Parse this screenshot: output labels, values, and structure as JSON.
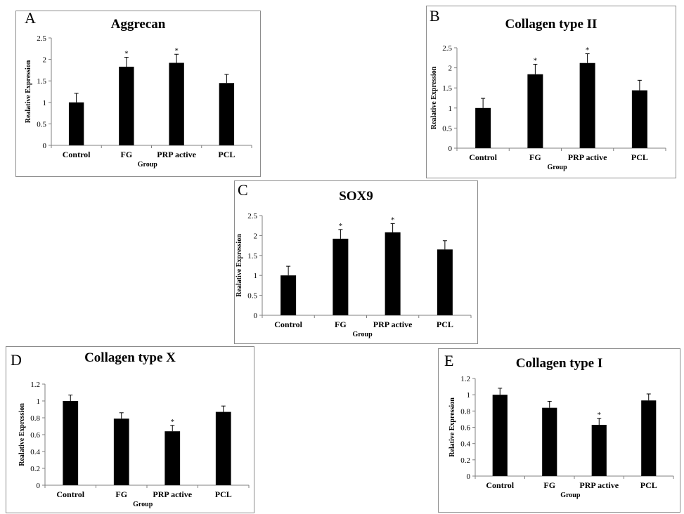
{
  "chart_data": [
    {
      "panel": "A",
      "type": "bar",
      "title": "Aggrecan",
      "xlabel": "Group",
      "ylabel": "Realative Expression",
      "categories": [
        "Control",
        "FG",
        "PRP active",
        "PCL"
      ],
      "values": [
        1.0,
        1.83,
        1.92,
        1.45
      ],
      "errors": [
        0.21,
        0.22,
        0.2,
        0.2
      ],
      "significance": [
        "",
        "*",
        "*",
        ""
      ],
      "ylim": [
        0,
        2.5
      ],
      "yticks": [
        "0",
        "0.5",
        "1",
        "1.5",
        "2",
        "2.5"
      ],
      "grid": false,
      "legend": "none"
    },
    {
      "panel": "B",
      "type": "bar",
      "title": "Collagen type II",
      "xlabel": "Group",
      "ylabel": "Realative Expression",
      "categories": [
        "Control",
        "FG",
        "PRP active",
        "PCL"
      ],
      "values": [
        1.0,
        1.84,
        2.12,
        1.44
      ],
      "errors": [
        0.24,
        0.25,
        0.23,
        0.25
      ],
      "significance": [
        "",
        "*",
        "*",
        ""
      ],
      "ylim": [
        0,
        2.5
      ],
      "yticks": [
        "0",
        "0.5",
        "1",
        "1.5",
        "2",
        "2.5"
      ],
      "grid": false,
      "legend": "none"
    },
    {
      "panel": "C",
      "type": "bar",
      "title": "SOX9",
      "xlabel": "Group",
      "ylabel": "Realative Expression",
      "categories": [
        "Control",
        "FG",
        "PRP active",
        "PCL"
      ],
      "values": [
        1.0,
        1.92,
        2.08,
        1.65
      ],
      "errors": [
        0.23,
        0.23,
        0.22,
        0.22
      ],
      "significance": [
        "",
        "*",
        "*",
        ""
      ],
      "ylim": [
        0,
        2.5
      ],
      "yticks": [
        "0",
        "0.5",
        "1",
        "1.5",
        "2",
        "2.5"
      ],
      "grid": false,
      "legend": "none"
    },
    {
      "panel": "D",
      "type": "bar",
      "title": "Collagen type X",
      "xlabel": "Group",
      "ylabel": "Realative Expression",
      "categories": [
        "Control",
        "FG",
        "PRP active",
        "PCL"
      ],
      "values": [
        1.0,
        0.79,
        0.64,
        0.87
      ],
      "errors": [
        0.07,
        0.07,
        0.07,
        0.07
      ],
      "significance": [
        "",
        "",
        "*",
        ""
      ],
      "ylim": [
        0,
        1.2
      ],
      "yticks": [
        "0",
        "0.2",
        "0.4",
        "0.6",
        "0.8",
        "1",
        "1.2"
      ],
      "grid": false,
      "legend": "none"
    },
    {
      "panel": "E",
      "type": "bar",
      "title": "Collagen type I",
      "xlabel": "Group",
      "ylabel": "Relative Expression",
      "categories": [
        "Control",
        "FG",
        "PRP active",
        "PCL"
      ],
      "values": [
        1.0,
        0.84,
        0.63,
        0.93
      ],
      "errors": [
        0.08,
        0.08,
        0.08,
        0.08
      ],
      "significance": [
        "",
        "",
        "*",
        ""
      ],
      "ylim": [
        0,
        1.2
      ],
      "yticks": [
        "0",
        "0.2",
        "0.4",
        "0.6",
        "0.8",
        "1",
        "1.2"
      ],
      "grid": false,
      "legend": "none"
    }
  ]
}
